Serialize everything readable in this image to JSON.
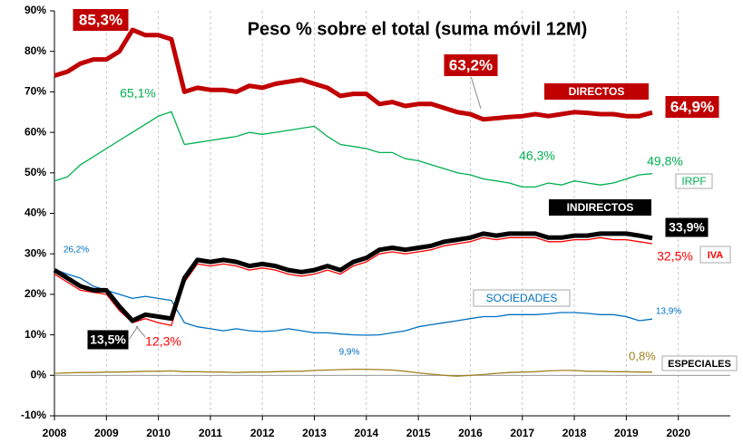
{
  "chart_data": {
    "type": "line",
    "title": "Peso % sobre el total (suma móvil 12M)",
    "x": [
      2008,
      2008.25,
      2008.5,
      2008.75,
      2009,
      2009.25,
      2009.5,
      2009.75,
      2010,
      2010.25,
      2010.5,
      2010.75,
      2011,
      2011.25,
      2011.5,
      2011.75,
      2012,
      2012.25,
      2012.5,
      2012.75,
      2013,
      2013.25,
      2013.5,
      2013.75,
      2014,
      2014.25,
      2014.5,
      2014.75,
      2015,
      2015.25,
      2015.5,
      2015.75,
      2016,
      2016.25,
      2016.5,
      2016.75,
      2017,
      2017.25,
      2017.5,
      2017.75,
      2018,
      2018.25,
      2018.5,
      2018.75,
      2019,
      2019.25,
      2019.5
    ],
    "series": [
      {
        "name": "DIRECTOS",
        "color": "#c00000",
        "values": [
          74,
          75,
          77,
          78,
          78,
          80,
          85.3,
          84,
          84,
          83,
          70,
          71,
          70.5,
          70.5,
          70,
          71.5,
          71,
          72,
          72.5,
          73,
          72,
          71,
          69,
          69.5,
          69.5,
          67,
          67.5,
          66.5,
          67,
          67,
          66,
          65,
          64.5,
          63.2,
          63.5,
          63.8,
          64,
          64.5,
          64,
          64.5,
          65,
          64.8,
          64.5,
          64.5,
          64,
          64,
          64.9
        ]
      },
      {
        "name": "IRPF",
        "color": "#00b050",
        "values": [
          48,
          49,
          52,
          54,
          56,
          58,
          60,
          62,
          64,
          65.1,
          57,
          57.5,
          58,
          58.5,
          59,
          60,
          59.5,
          60,
          60.5,
          61,
          61.5,
          59,
          57,
          56.5,
          56,
          55,
          55,
          53.5,
          53,
          52,
          51,
          50,
          49.5,
          48.5,
          48,
          47.5,
          46.5,
          46.5,
          47.5,
          47,
          48,
          47.5,
          47,
          47.5,
          48.5,
          49.5,
          49.8
        ]
      },
      {
        "name": "SOCIEDADES",
        "color": "#0070c0",
        "values": [
          26.2,
          25,
          24,
          22,
          21,
          20,
          19,
          19.5,
          19,
          18.5,
          13,
          12,
          11.5,
          11,
          11.5,
          11,
          10.8,
          11,
          11.5,
          11,
          10.5,
          10.5,
          10.2,
          10,
          9.9,
          10,
          10.5,
          11,
          12,
          12.5,
          13,
          13.5,
          14,
          14.5,
          14.5,
          15,
          15,
          15,
          15.2,
          15.5,
          15.5,
          15.3,
          15,
          15,
          14.5,
          13.5,
          13.9
        ]
      },
      {
        "name": "ESPECIALES",
        "color": "#a08020",
        "values": [
          0.5,
          0.6,
          0.7,
          0.7,
          0.8,
          0.8,
          0.9,
          1,
          1,
          1.1,
          0.9,
          0.9,
          0.8,
          0.8,
          0.7,
          0.8,
          0.8,
          0.9,
          1,
          1,
          1.2,
          1.3,
          1.4,
          1.5,
          1.5,
          1.4,
          1.3,
          1,
          0.6,
          0.3,
          0,
          -0.2,
          0,
          0.2,
          0.5,
          0.7,
          0.8,
          0.9,
          1.1,
          1.2,
          1.2,
          1,
          1,
          0.9,
          0.9,
          0.8,
          0.8
        ]
      },
      {
        "name": "IVA",
        "color": "#ff0000",
        "values": [
          25,
          23,
          21,
          20.5,
          20,
          16,
          13,
          14,
          13,
          12.3,
          23,
          27.5,
          27,
          27.5,
          27,
          26,
          26.5,
          26,
          25,
          24.5,
          25,
          26,
          25,
          27,
          28,
          30,
          30.5,
          30,
          30.5,
          31,
          32,
          32.5,
          33,
          34,
          33.5,
          34,
          34,
          34,
          33,
          33,
          33.5,
          33.5,
          34,
          33.5,
          33.5,
          33,
          32.5
        ]
      },
      {
        "name": "INDIRECTOS",
        "color": "#000000",
        "values": [
          26,
          24,
          22,
          21,
          21,
          17,
          13.5,
          15,
          14.5,
          14,
          24,
          28.5,
          28,
          28.5,
          28,
          27,
          27.5,
          27,
          26,
          25.5,
          26,
          27,
          26,
          28,
          29,
          31,
          31.5,
          31,
          31.5,
          32,
          33,
          33.5,
          34,
          35,
          34.5,
          35,
          35,
          35,
          34,
          34,
          34.5,
          34.5,
          35,
          35,
          35,
          34.5,
          33.9
        ]
      }
    ],
    "annotations": [
      "85,3%",
      "63,2%",
      "64,9%",
      "65,1%",
      "46,3%",
      "49,8%",
      "26,2%",
      "13,5%",
      "12,3%",
      "33,9%",
      "32,5%",
      "9,9%",
      "13,9%",
      "0,8%"
    ],
    "xlim": [
      2008,
      2021
    ],
    "xticks": [
      2008,
      2009,
      2010,
      2011,
      2012,
      2013,
      2014,
      2015,
      2016,
      2017,
      2018,
      2019,
      2020
    ],
    "ylim": [
      -10,
      90
    ],
    "yticks": [
      {
        "value": -10,
        "label": "-10%"
      },
      {
        "value": 0,
        "label": "0%"
      },
      {
        "value": 10,
        "label": "10%"
      },
      {
        "value": 20,
        "label": "20%"
      },
      {
        "value": 30,
        "label": "30%"
      },
      {
        "value": 40,
        "label": "40%"
      },
      {
        "value": 50,
        "label": "50%"
      },
      {
        "value": 60,
        "label": "60%"
      },
      {
        "value": 70,
        "label": "70%"
      },
      {
        "value": 80,
        "label": "80%"
      },
      {
        "value": 90,
        "label": "90%"
      }
    ],
    "grid": true
  }
}
